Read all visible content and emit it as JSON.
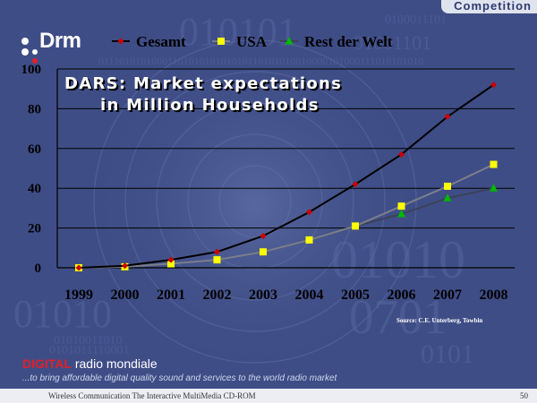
{
  "section_tab": "Competition",
  "logo_text": "Drm",
  "chart_title_line1": "DARS: Market expectations",
  "chart_title_line2": "in Million Households",
  "source_note": "Source: C.E. Unterberg, Towbin",
  "brand": {
    "part1": "DIGITAL",
    "part2": "radio mondiale"
  },
  "tagline": "...to bring affordable digital quality sound and services to the world radio market",
  "footer": {
    "text": "Wireless Communication The Interactive MultiMedia CD-ROM",
    "page": "50"
  },
  "colors": {
    "gesamt": "#cc0000",
    "usa": "#ffff00",
    "rest": "#00b800",
    "background": "#3f4d86"
  },
  "chart_data": {
    "type": "line",
    "categories": [
      "1999",
      "2000",
      "2001",
      "2002",
      "2003",
      "2004",
      "2005",
      "2006",
      "2007",
      "2008"
    ],
    "ylim": [
      0,
      100
    ],
    "yticks": [
      0,
      20,
      40,
      60,
      80,
      100
    ],
    "grid": true,
    "legend_position": "top",
    "series": [
      {
        "name": "Gesamt",
        "marker": "diamond",
        "values": [
          0,
          1,
          4,
          8,
          16,
          28,
          42,
          57,
          76,
          92
        ]
      },
      {
        "name": "USA",
        "marker": "square",
        "values": [
          0,
          0.5,
          2,
          4,
          8,
          14,
          21,
          31,
          41,
          52
        ]
      },
      {
        "name": "Rest der Welt",
        "marker": "triangle",
        "values": [
          0,
          0.5,
          2,
          4,
          8,
          14,
          21,
          27,
          35,
          40
        ]
      }
    ]
  }
}
